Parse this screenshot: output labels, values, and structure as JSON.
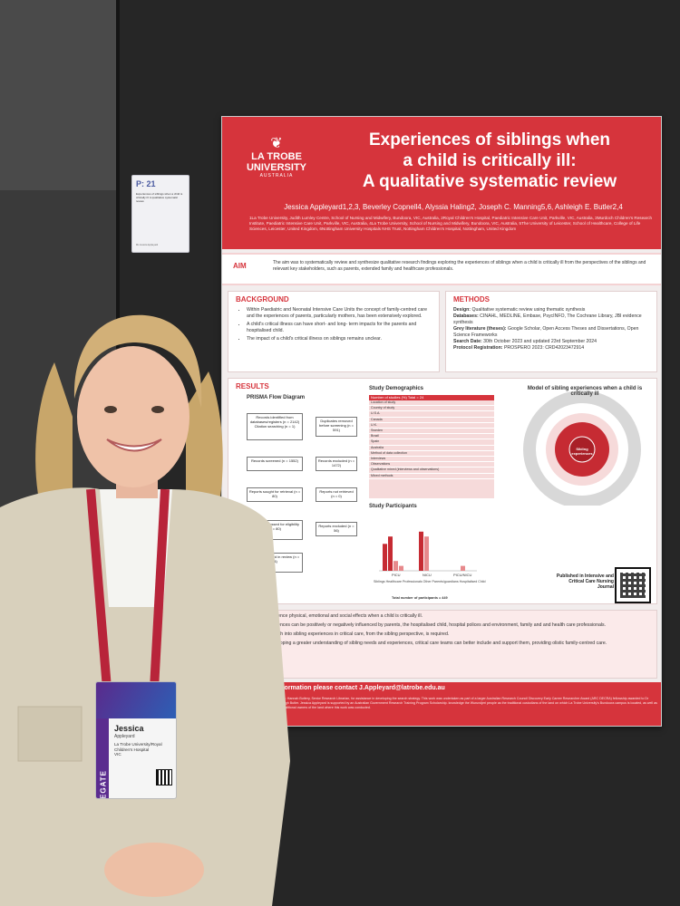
{
  "placard": {
    "code": "P: 21",
    "text": "Experiences of siblings when a child is critically ill: A qualitative systematic review",
    "sub": "Ms Jessica Appleyard"
  },
  "poster": {
    "university": "LA TROBE UNIVERSITY",
    "university_sub": "AUSTRALIA",
    "title_line1": "Experiences of siblings when",
    "title_line2": "a child is critically ill:",
    "title_line3": "A qualitative systematic review",
    "authors": "Jessica Appleyard1,2,3, Beverley Copnell4, Alyssia Haling2, Joseph C. Manning5,6, Ashleigh E. Butler2,4",
    "affiliations": "1La Trobe University, Judith Lumley Centre, School of Nursing and Midwifery, Bundoora, VIC, Australia, 2Royal Children's Hospital, Paediatric Intensive Care Unit, Parkville, VIC, Australia, 3Murdoch Children's Research Institute, Paediatric Intensive Care Unit, Parkville, VIC, Australia, 4La Trobe University, School of Nursing and Midwifery, Bundoora, VIC, Australia, 5The University of Leicester, School of Healthcare, College of Life Sciences, Leicester, United Kingdom, 6Nottingham University Hospitals NHS Trust, Nottingham Children's Hospital, Nottingham, United Kingdom",
    "aim_label": "AIM",
    "aim_text": "The aim was to systematically review and synthesize qualitative research findings exploring the experiences of siblings when a child is critically ill from the perspectives of the siblings and relevant key stakeholders, such as parents, extended family and healthcare professionals.",
    "background_title": "BACKGROUND",
    "background": [
      "Within Paediatric and Neonatal Intensive Care Units the concept of family-centred care and the experiences of parents, particularly mothers, has been extensively explored.",
      "A child's critical illness can have short- and long- term impacts for the parents and hospitalised child.",
      "The impact of a child's critical illness on siblings remains unclear."
    ],
    "methods_title": "METHODS",
    "methods": [
      {
        "label": "Design:",
        "text": "Qualitative systematic review using thematic synthesis"
      },
      {
        "label": "Databases:",
        "text": "CINAHL, MEDLINE, Embase, PsycINFO, The Cochrane Library, JBI evidence synthesis"
      },
      {
        "label": "Grey literature (theses):",
        "text": "Google Scholar, Open Access Theses and Dissertations, Open Science Frameworks"
      },
      {
        "label": "Search Date:",
        "text": "30th October 2023 and updated 23rd September 2024"
      },
      {
        "label": "Protocol Registration:",
        "text": "PROSPERO 2023: CRD42023472914"
      }
    ],
    "results_title": "RESULTS",
    "prisma_title": "PRISMA Flow Diagram",
    "prisma": {
      "identified": "Records identified from databases/registers (n = 2142) Citation searching (n = 1)",
      "duplicates": "Duplicates removed before screening (n = 591)",
      "screened": "Records screened (n = 1552)",
      "excluded": "Records excluded (n = 1472)",
      "retrieval": "Reports sought for retrieval (n = 80)",
      "not_retrieved": "Reports not retrieved (n = 0)",
      "assessed": "Reports assessed for eligibility (n = 80)",
      "reports_excluded": "Reports excluded (n = 56)",
      "included": "Studies included in review (n = 24)"
    },
    "demographics_title": "Study Demographics",
    "demographics_header": "Number of studies (%) Total = 24",
    "demographics_rows": [
      "Location of study",
      "Country of study",
      "U.S.A.",
      "Canada",
      "U.K.",
      "Sweden",
      "Brazil",
      "Spain",
      "Australia",
      "Method of data collection",
      "Interviews",
      "Observations",
      "Qualitative mixed (interviews and observations)",
      "Mixed methods"
    ],
    "participants_title": "Study Participants",
    "participants_legend": "Siblings  Healthcare Professionals  Other  Parents/guardians  Hospitalised Child",
    "participants_total": "Total number of participants = 449",
    "model_title": "Model of sibling experiences when a child is critically ill",
    "model_center": "Sibling experiences",
    "published": "Published in Intensive and Critical Care Nursing Journal",
    "conclusions": [
      "experience physical, emotional and social effects when a child is critically ill.",
      "experiences can be positively or negatively influenced by parents, the hospitalised child, hospital polices and environment, family and and health care professionals.",
      "research into sibling experiences in critical care, from the sibling perspective, is required.",
      "h developing a greater understanding of sibling needs and experiences, critical care teams can better include and support them, providing olistic family-centred care."
    ],
    "contact": "information please contact J.Appleyard@latrobe.edu.au",
    "fine_print": "ments: Hannah Buttery, Senior Research Librarian, for assistance in developing the search strategy. This work was undertaken as part of a larger Australian Research Council Discovery Early Career Researcher Award (ARC DECRA) fellowship awarded to Dr Ashleigh Butler. Jessica Appleyard is supported by an Australian Government Research Training Program Scholarship. knowledge the Wurundjeri people as the traditional custodians of the land on which La Trobe University's Bundoora campus is located, as well as the traditional owners of the land where this work was conducted."
  },
  "badge": {
    "first_name": "Jessica",
    "last_name": "Appleyard",
    "organisation": "La Trobe University/Royal Children's Hospital",
    "state": "VIC",
    "role": "DELEGATE"
  },
  "chart_data": {
    "type": "bar",
    "categories": [
      "PICU",
      "NICU",
      "PICU/NICU"
    ],
    "series": [
      {
        "name": "Siblings",
        "values": [
          55,
          0,
          0
        ],
        "color": "#c62b33"
      },
      {
        "name": "Parents/guardians",
        "values": [
          70,
          80,
          0
        ],
        "color": "#c62b33"
      },
      {
        "name": "Healthcare Professionals",
        "values": [
          20,
          70,
          0
        ],
        "color": "#e7898c"
      },
      {
        "name": "Hospitalised Child",
        "values": [
          10,
          0,
          10
        ],
        "color": "#e7898c"
      }
    ],
    "ylim": [
      0,
      100
    ]
  }
}
